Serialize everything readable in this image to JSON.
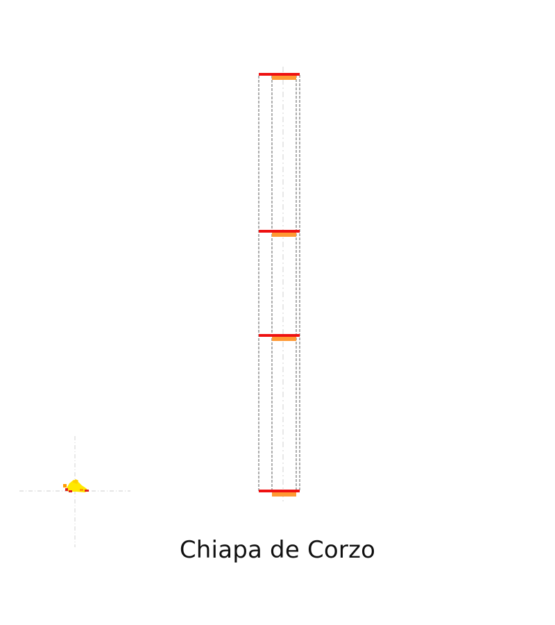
{
  "caption": "Chiapa de Corzo",
  "colors": {
    "floor_line": "#ee1111",
    "inner_marker": "#ff9933",
    "outer_frame": "#777777",
    "centerline": "#d8d8d8",
    "figure_yellow": "#ffe800",
    "figure_orange": "#ff9a00",
    "figure_red": "#e02020"
  },
  "icons": {
    "axis_cross": "crosshair-icon",
    "figure": "reclining-figure-icon"
  },
  "structure": {
    "level_count": 4
  }
}
